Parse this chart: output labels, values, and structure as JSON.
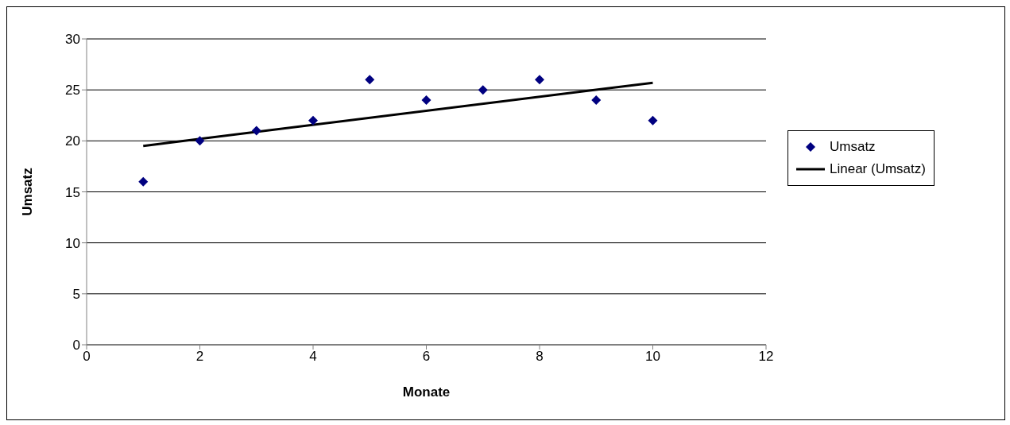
{
  "chart_data": {
    "type": "scatter",
    "xlabel": "Monate",
    "ylabel": "Umsatz",
    "xlim": [
      0,
      12
    ],
    "xticks": [
      0,
      2,
      4,
      6,
      8,
      10,
      12
    ],
    "ylim": [
      0,
      30
    ],
    "yticks": [
      0,
      5,
      10,
      15,
      20,
      25,
      30
    ],
    "grid": "y",
    "legend": "right",
    "series": [
      {
        "name": "Umsatz",
        "color": "#000080",
        "marker": "diamond",
        "x": [
          1,
          2,
          3,
          4,
          5,
          6,
          7,
          8,
          9,
          10
        ],
        "values": [
          16,
          20,
          21,
          22,
          26,
          24,
          25,
          26,
          24,
          22
        ]
      },
      {
        "name": "Linear (Umsatz)",
        "type": "line",
        "color": "#000000",
        "marker": "none",
        "line_style": "solid",
        "x": [
          1,
          10
        ],
        "values": [
          19.5,
          25.7
        ]
      }
    ]
  }
}
